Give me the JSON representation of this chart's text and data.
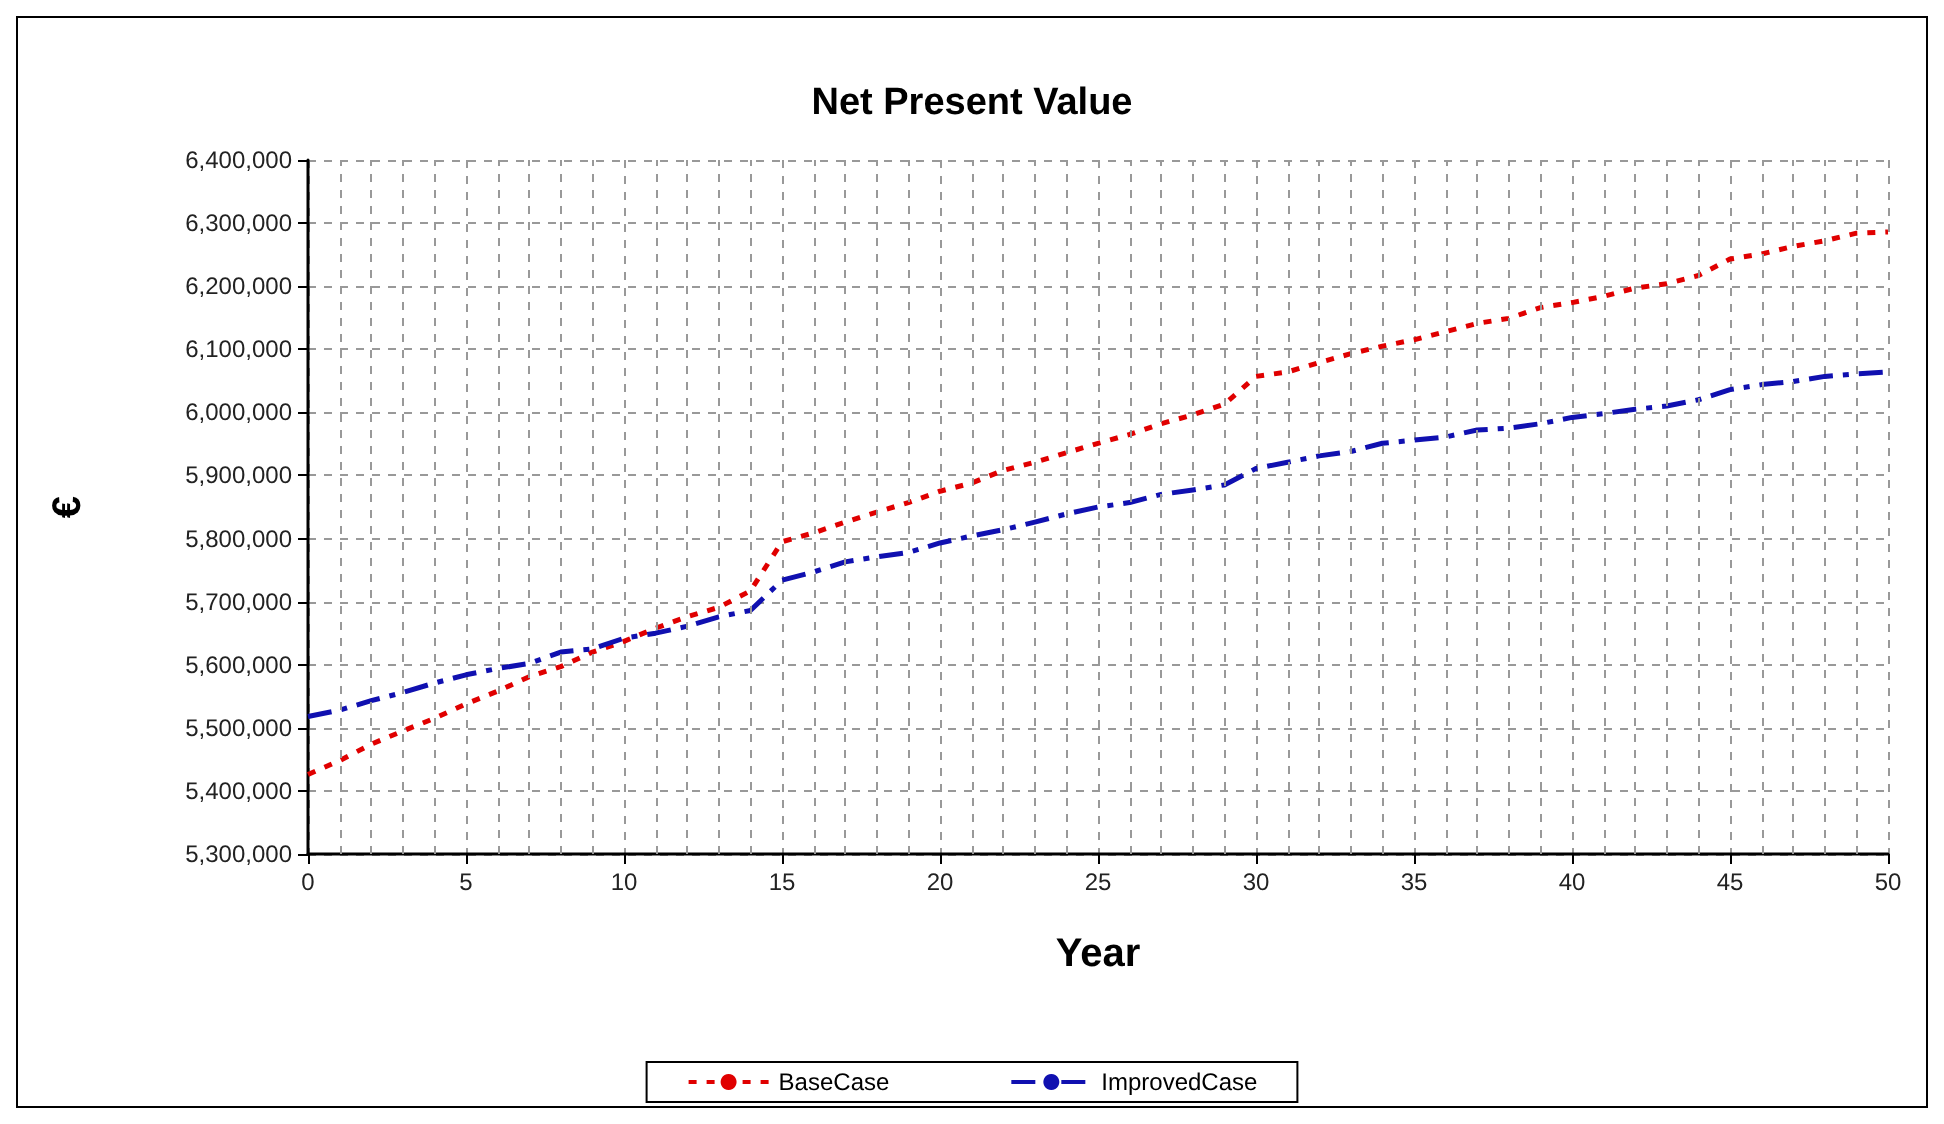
{
  "chart_data": {
    "type": "line",
    "title": "Net Present Value",
    "xlabel": "Year",
    "ylabel": "€",
    "x": [
      0,
      1,
      2,
      3,
      4,
      5,
      6,
      7,
      8,
      9,
      10,
      11,
      12,
      13,
      14,
      15,
      16,
      17,
      18,
      19,
      20,
      21,
      22,
      23,
      24,
      25,
      26,
      27,
      28,
      29,
      30,
      31,
      32,
      33,
      34,
      35,
      36,
      37,
      38,
      39,
      40,
      41,
      42,
      43,
      44,
      45,
      46,
      47,
      48,
      49,
      50
    ],
    "series": [
      {
        "name": "BaseCase",
        "color": "#e00000",
        "line_style": "dotted",
        "values": [
          5426000,
          5448000,
          5474000,
          5495000,
          5515000,
          5538000,
          5558000,
          5581000,
          5597000,
          5620000,
          5637000,
          5658000,
          5676000,
          5691000,
          5717000,
          5795000,
          5809000,
          5826000,
          5842000,
          5857000,
          5875000,
          5888000,
          5908000,
          5921000,
          5936000,
          5951000,
          5965000,
          5982000,
          5996000,
          6013000,
          6057000,
          6064000,
          6079000,
          6093000,
          6105000,
          6115000,
          6128000,
          6141000,
          6149000,
          6166000,
          6174000,
          6184000,
          6197000,
          6204000,
          6217000,
          6243000,
          6251000,
          6263000,
          6272000,
          6284000,
          6286000
        ]
      },
      {
        "name": "ImprovedCase",
        "color": "#1010b0",
        "line_style": "dashed",
        "values": [
          5518000,
          5528000,
          5543000,
          5556000,
          5571000,
          5584000,
          5594000,
          5602000,
          5620000,
          5625000,
          5642000,
          5650000,
          5661000,
          5676000,
          5686000,
          5734000,
          5747000,
          5763000,
          5771000,
          5778000,
          5793000,
          5804000,
          5814000,
          5826000,
          5839000,
          5850000,
          5857000,
          5870000,
          5877000,
          5885000,
          5911000,
          5921000,
          5931000,
          5938000,
          5951000,
          5956000,
          5961000,
          5972000,
          5975000,
          5982000,
          5992000,
          5998000,
          6005000,
          6010000,
          6020000,
          6036000,
          6044000,
          6049000,
          6057000,
          6061000,
          6064000
        ]
      }
    ],
    "xlim": [
      0,
      50
    ],
    "xticks": [
      0,
      {
        "value": 1,
        "label": null
      },
      {
        "value": 2,
        "label": null
      },
      {
        "value": 3,
        "label": null
      },
      {
        "value": 4,
        "label": null
      },
      5,
      {
        "value": 6,
        "label": null
      },
      {
        "value": 7,
        "label": null
      },
      {
        "value": 8,
        "label": null
      },
      {
        "value": 9,
        "label": null
      },
      10,
      {
        "value": 11,
        "label": null
      },
      {
        "value": 12,
        "label": null
      },
      {
        "value": 13,
        "label": null
      },
      {
        "value": 14,
        "label": null
      },
      15,
      {
        "value": 16,
        "label": null
      },
      {
        "value": 17,
        "label": null
      },
      {
        "value": 18,
        "label": null
      },
      {
        "value": 19,
        "label": null
      },
      20,
      {
        "value": 21,
        "label": null
      },
      {
        "value": 22,
        "label": null
      },
      {
        "value": 23,
        "label": null
      },
      {
        "value": 24,
        "label": null
      },
      25,
      {
        "value": 26,
        "label": null
      },
      {
        "value": 27,
        "label": null
      },
      {
        "value": 28,
        "label": null
      },
      {
        "value": 29,
        "label": null
      },
      30,
      {
        "value": 31,
        "label": null
      },
      {
        "value": 32,
        "label": null
      },
      {
        "value": 33,
        "label": null
      },
      {
        "value": 34,
        "label": null
      },
      35,
      {
        "value": 36,
        "label": null
      },
      {
        "value": 37,
        "label": null
      },
      {
        "value": 38,
        "label": null
      },
      {
        "value": 39,
        "label": null
      },
      40,
      {
        "value": 41,
        "label": null
      },
      {
        "value": 42,
        "label": null
      },
      {
        "value": 43,
        "label": null
      },
      {
        "value": 44,
        "label": null
      },
      45,
      {
        "value": 46,
        "label": null
      },
      {
        "value": 47,
        "label": null
      },
      {
        "value": 48,
        "label": null
      },
      {
        "value": 49,
        "label": null
      },
      50
    ],
    "ylim": [
      5300000,
      6400000
    ],
    "yticks": [
      {
        "value": 5300000,
        "label": "5,300,000"
      },
      {
        "value": 5400000,
        "label": "5,400,000"
      },
      {
        "value": 5500000,
        "label": "5,500,000"
      },
      {
        "value": 5600000,
        "label": "5,600,000"
      },
      {
        "value": 5700000,
        "label": "5,700,000"
      },
      {
        "value": 5800000,
        "label": "5,800,000"
      },
      {
        "value": 5900000,
        "label": "5,900,000"
      },
      {
        "value": 6000000,
        "label": "6,000,000"
      },
      {
        "value": 6100000,
        "label": "6,100,000"
      },
      {
        "value": 6200000,
        "label": "6,200,000"
      },
      {
        "value": 6300000,
        "label": "6,300,000"
      },
      {
        "value": 6400000,
        "label": "6,400,000"
      }
    ],
    "grid": true,
    "legend": "bottom",
    "marker": "none"
  }
}
